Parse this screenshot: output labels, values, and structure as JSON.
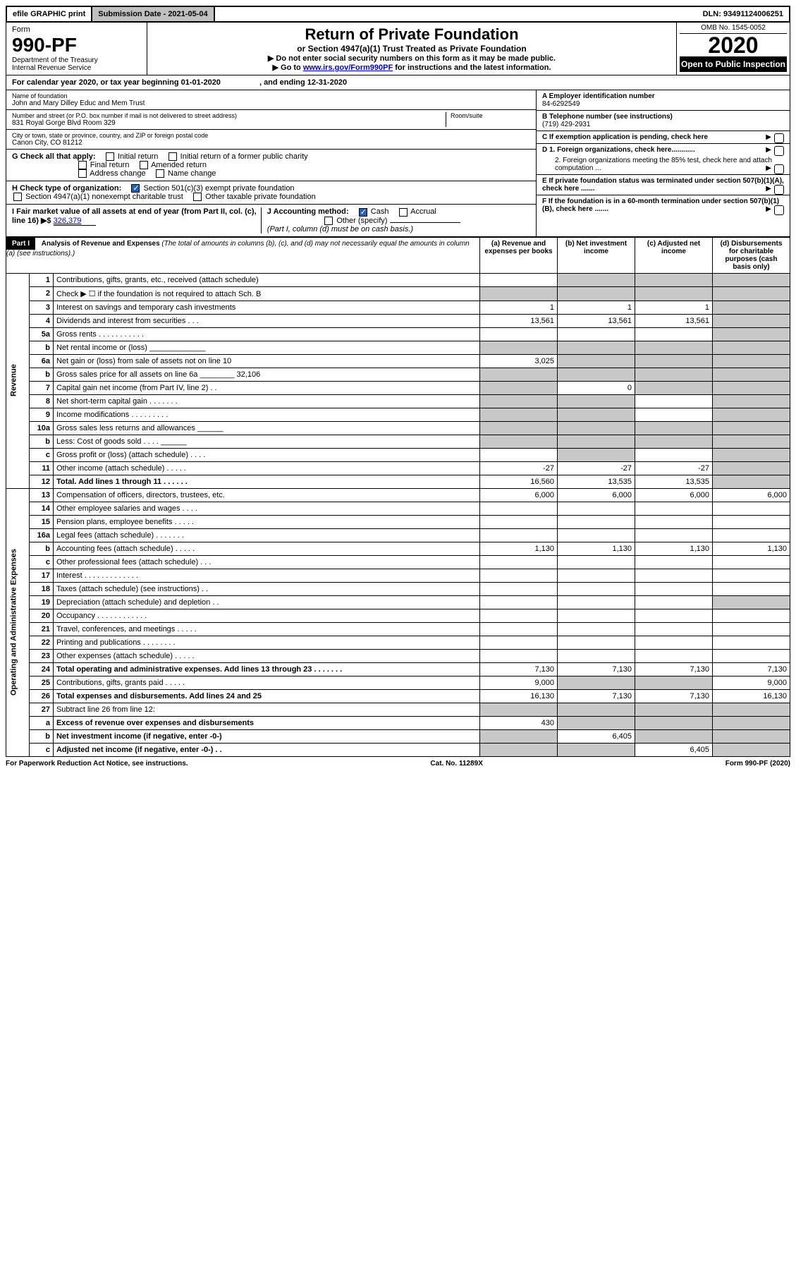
{
  "topbar": {
    "efile": "efile GRAPHIC print",
    "submission": "Submission Date - 2021-05-04",
    "dln": "DLN: 93491124006251"
  },
  "header": {
    "form_label": "Form",
    "form_number": "990-PF",
    "dept1": "Department of the Treasury",
    "dept2": "Internal Revenue Service",
    "title": "Return of Private Foundation",
    "subtitle": "or Section 4947(a)(1) Trust Treated as Private Foundation",
    "instr1": "▶ Do not enter social security numbers on this form as it may be made public.",
    "instr2_pre": "▶ Go to ",
    "instr2_link": "www.irs.gov/Form990PF",
    "instr2_post": " for instructions and the latest information.",
    "omb": "OMB No. 1545-0052",
    "year": "2020",
    "open": "Open to Public Inspection"
  },
  "calendar": {
    "text_pre": "For calendar year 2020, or tax year beginning ",
    "begin": "01-01-2020",
    "mid": " , and ending ",
    "end": "12-31-2020"
  },
  "info_left": {
    "name_lbl": "Name of foundation",
    "name_val": "John and Mary Dilley Educ and Mem Trust",
    "addr_lbl": "Number and street (or P.O. box number if mail is not delivered to street address)",
    "addr_val": "831 Royal Gorge Blvd Room 329",
    "room_lbl": "Room/suite",
    "city_lbl": "City or town, state or province, country, and ZIP or foreign postal code",
    "city_val": "Canon City, CO  81212"
  },
  "info_right": {
    "a_lbl": "A Employer identification number",
    "a_val": "84-6292549",
    "b_lbl": "B Telephone number (see instructions)",
    "b_val": "(719) 429-2931",
    "c_lbl": "C  If exemption application is pending, check here",
    "d1_lbl": "D 1. Foreign organizations, check here............",
    "d2_lbl": "2. Foreign organizations meeting the 85% test, check here and attach computation ...",
    "e_lbl": "E  If private foundation status was terminated under section 507(b)(1)(A), check here .......",
    "f_lbl": "F  If the foundation is in a 60-month termination under section 507(b)(1)(B), check here ......."
  },
  "checks": {
    "g_lbl": "G Check all that apply:",
    "g_opts": [
      "Initial return",
      "Initial return of a former public charity",
      "Final return",
      "Amended return",
      "Address change",
      "Name change"
    ],
    "h_lbl": "H Check type of organization:",
    "h1": "Section 501(c)(3) exempt private foundation",
    "h2": "Section 4947(a)(1) nonexempt charitable trust",
    "h3": "Other taxable private foundation",
    "i_lbl": "I Fair market value of all assets at end of year (from Part II, col. (c), line 16) ▶$",
    "i_val": "326,379",
    "j_lbl": "J Accounting method:",
    "j_cash": "Cash",
    "j_accrual": "Accrual",
    "j_other": "Other (specify)",
    "j_note": "(Part I, column (d) must be on cash basis.)"
  },
  "part1": {
    "label": "Part I",
    "title": "Analysis of Revenue and Expenses",
    "note": "(The total of amounts in columns (b), (c), and (d) may not necessarily equal the amounts in column (a) (see instructions).)",
    "col_a": "(a)   Revenue and expenses per books",
    "col_b": "(b)  Net investment income",
    "col_c": "(c)  Adjusted net income",
    "col_d": "(d)  Disbursements for charitable purposes (cash basis only)"
  },
  "sections": {
    "revenue": "Revenue",
    "expenses": "Operating and Administrative Expenses"
  },
  "rows": [
    {
      "n": "1",
      "t": "Contributions, gifts, grants, etc., received (attach schedule)",
      "a": "",
      "b": "",
      "c": "",
      "d": "",
      "gb": true,
      "gc": true,
      "gd": true
    },
    {
      "n": "2",
      "t": "Check ▶ ☐ if the foundation is not required to attach Sch. B",
      "a": "",
      "b": "",
      "c": "",
      "d": "",
      "ga": true,
      "gb": true,
      "gc": true,
      "gd": true
    },
    {
      "n": "3",
      "t": "Interest on savings and temporary cash investments",
      "a": "1",
      "b": "1",
      "c": "1",
      "d": "",
      "gd": true
    },
    {
      "n": "4",
      "t": "Dividends and interest from securities   .   .   .",
      "a": "13,561",
      "b": "13,561",
      "c": "13,561",
      "d": "",
      "gd": true
    },
    {
      "n": "5a",
      "t": "Gross rents   .   .   .   .   .   .   .   .   .   .   .",
      "a": "",
      "b": "",
      "c": "",
      "d": "",
      "gd": true
    },
    {
      "n": "b",
      "t": "Net rental income or (loss)   _____________",
      "a": "",
      "b": "",
      "c": "",
      "d": "",
      "ga": true,
      "gb": true,
      "gc": true,
      "gd": true
    },
    {
      "n": "6a",
      "t": "Net gain or (loss) from sale of assets not on line 10",
      "a": "3,025",
      "b": "",
      "c": "",
      "d": "",
      "gb": true,
      "gc": true,
      "gd": true
    },
    {
      "n": "b",
      "t": "Gross sales price for all assets on line 6a ________ 32,106",
      "a": "",
      "b": "",
      "c": "",
      "d": "",
      "ga": true,
      "gb": true,
      "gc": true,
      "gd": true
    },
    {
      "n": "7",
      "t": "Capital gain net income (from Part IV, line 2)   .   .",
      "a": "",
      "b": "0",
      "c": "",
      "d": "",
      "ga": true,
      "gc": true,
      "gd": true
    },
    {
      "n": "8",
      "t": "Net short-term capital gain   .   .   .   .   .   .   .",
      "a": "",
      "b": "",
      "c": "",
      "d": "",
      "ga": true,
      "gb": true,
      "gd": true
    },
    {
      "n": "9",
      "t": "Income modifications   .   .   .   .   .   .   .   .   .",
      "a": "",
      "b": "",
      "c": "",
      "d": "",
      "ga": true,
      "gb": true,
      "gd": true
    },
    {
      "n": "10a",
      "t": "Gross sales less returns and allowances  ______",
      "a": "",
      "b": "",
      "c": "",
      "d": "",
      "ga": true,
      "gb": true,
      "gc": true,
      "gd": true
    },
    {
      "n": "b",
      "t": "Less: Cost of goods sold   .   .   .   .  ______",
      "a": "",
      "b": "",
      "c": "",
      "d": "",
      "ga": true,
      "gb": true,
      "gc": true,
      "gd": true
    },
    {
      "n": "c",
      "t": "Gross profit or (loss) (attach schedule)   .   .   .   .",
      "a": "",
      "b": "",
      "c": "",
      "d": "",
      "gb": true,
      "gd": true
    },
    {
      "n": "11",
      "t": "Other income (attach schedule)   .   .   .   .   .",
      "a": "-27",
      "b": "-27",
      "c": "-27",
      "d": "",
      "gd": true
    },
    {
      "n": "12",
      "t": "Total. Add lines 1 through 11   .   .   .   .   .   .",
      "a": "16,560",
      "b": "13,535",
      "c": "13,535",
      "d": "",
      "gd": true,
      "bold": true
    },
    {
      "n": "13",
      "t": "Compensation of officers, directors, trustees, etc.",
      "a": "6,000",
      "b": "6,000",
      "c": "6,000",
      "d": "6,000"
    },
    {
      "n": "14",
      "t": "Other employee salaries and wages   .   .   .   .",
      "a": "",
      "b": "",
      "c": "",
      "d": ""
    },
    {
      "n": "15",
      "t": "Pension plans, employee benefits   .   .   .   .   .",
      "a": "",
      "b": "",
      "c": "",
      "d": ""
    },
    {
      "n": "16a",
      "t": "Legal fees (attach schedule)   .   .   .   .   .   .   .",
      "a": "",
      "b": "",
      "c": "",
      "d": ""
    },
    {
      "n": "b",
      "t": "Accounting fees (attach schedule)   .   .   .   .   .",
      "a": "1,130",
      "b": "1,130",
      "c": "1,130",
      "d": "1,130"
    },
    {
      "n": "c",
      "t": "Other professional fees (attach schedule)   .   .   .",
      "a": "",
      "b": "",
      "c": "",
      "d": ""
    },
    {
      "n": "17",
      "t": "Interest   .   .   .   .   .   .   .   .   .   .   .   .   .",
      "a": "",
      "b": "",
      "c": "",
      "d": ""
    },
    {
      "n": "18",
      "t": "Taxes (attach schedule) (see instructions)   .   .",
      "a": "",
      "b": "",
      "c": "",
      "d": ""
    },
    {
      "n": "19",
      "t": "Depreciation (attach schedule) and depletion   .   .",
      "a": "",
      "b": "",
      "c": "",
      "d": "",
      "gd": true
    },
    {
      "n": "20",
      "t": "Occupancy   .   .   .   .   .   .   .   .   .   .   .   .",
      "a": "",
      "b": "",
      "c": "",
      "d": ""
    },
    {
      "n": "21",
      "t": "Travel, conferences, and meetings   .   .   .   .   .",
      "a": "",
      "b": "",
      "c": "",
      "d": ""
    },
    {
      "n": "22",
      "t": "Printing and publications   .   .   .   .   .   .   .   .",
      "a": "",
      "b": "",
      "c": "",
      "d": ""
    },
    {
      "n": "23",
      "t": "Other expenses (attach schedule)   .   .   .   .   .",
      "a": "",
      "b": "",
      "c": "",
      "d": ""
    },
    {
      "n": "24",
      "t": "Total operating and administrative expenses. Add lines 13 through 23   .   .   .   .   .   .   .",
      "a": "7,130",
      "b": "7,130",
      "c": "7,130",
      "d": "7,130",
      "bold": true
    },
    {
      "n": "25",
      "t": "Contributions, gifts, grants paid   .   .   .   .   .",
      "a": "9,000",
      "b": "",
      "c": "",
      "d": "9,000",
      "gb": true,
      "gc": true
    },
    {
      "n": "26",
      "t": "Total expenses and disbursements. Add lines 24 and 25",
      "a": "16,130",
      "b": "7,130",
      "c": "7,130",
      "d": "16,130",
      "bold": true
    },
    {
      "n": "27",
      "t": "Subtract line 26 from line 12:",
      "a": "",
      "b": "",
      "c": "",
      "d": "",
      "ga": true,
      "gb": true,
      "gc": true,
      "gd": true
    },
    {
      "n": "a",
      "t": "Excess of revenue over expenses and disbursements",
      "a": "430",
      "b": "",
      "c": "",
      "d": "",
      "gb": true,
      "gc": true,
      "gd": true,
      "bold": true
    },
    {
      "n": "b",
      "t": "Net investment income (if negative, enter -0-)",
      "a": "",
      "b": "6,405",
      "c": "",
      "d": "",
      "ga": true,
      "gc": true,
      "gd": true,
      "bold": true
    },
    {
      "n": "c",
      "t": "Adjusted net income (if negative, enter -0-)   .   .",
      "a": "",
      "b": "",
      "c": "6,405",
      "d": "",
      "ga": true,
      "gb": true,
      "gd": true,
      "bold": true
    }
  ],
  "footer": {
    "left": "For Paperwork Reduction Act Notice, see instructions.",
    "mid": "Cat. No. 11289X",
    "right": "Form 990-PF (2020)"
  }
}
